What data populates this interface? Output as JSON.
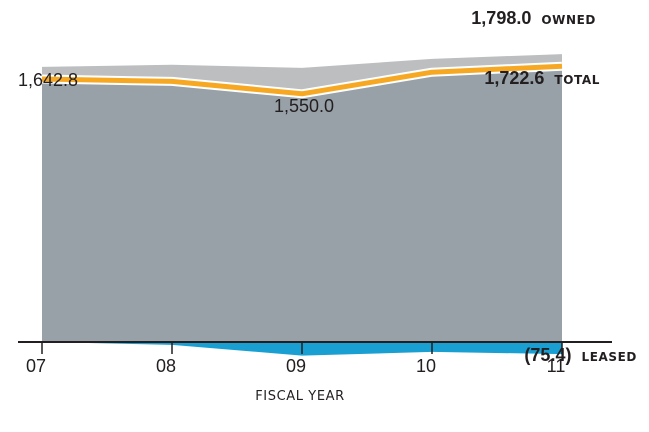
{
  "chart_data": {
    "type": "area",
    "x": [
      "07",
      "08",
      "09",
      "10",
      "11"
    ],
    "xlabel": "FISCAL YEAR",
    "ylabel": "",
    "title": "",
    "grid": false,
    "series": [
      {
        "name": "OWNED",
        "values": [
          1718.0,
          1732.0,
          1712.0,
          1768.0,
          1798.0
        ],
        "color": "#bcbec0"
      },
      {
        "name": "TOTAL",
        "values": [
          1642.8,
          1628.0,
          1550.0,
          1685.0,
          1722.6
        ],
        "color": "#f7a823"
      },
      {
        "name": "LEASED",
        "values": [
          0,
          -18.0,
          -85.0,
          -62.0,
          -75.4
        ],
        "color": "#1a9fd3"
      }
    ],
    "fill_color": "#98a1a8",
    "point_labels": [
      {
        "text": "1,642.8",
        "series": "TOTAL",
        "index": 0
      },
      {
        "text": "1,550.0",
        "series": "TOTAL",
        "index": 2
      }
    ],
    "end_labels": [
      {
        "value": "1,798.0",
        "name": "OWNED"
      },
      {
        "value": "1,722.6",
        "name": "TOTAL"
      },
      {
        "value": "(75.4)",
        "name": "LEASED"
      }
    ]
  }
}
